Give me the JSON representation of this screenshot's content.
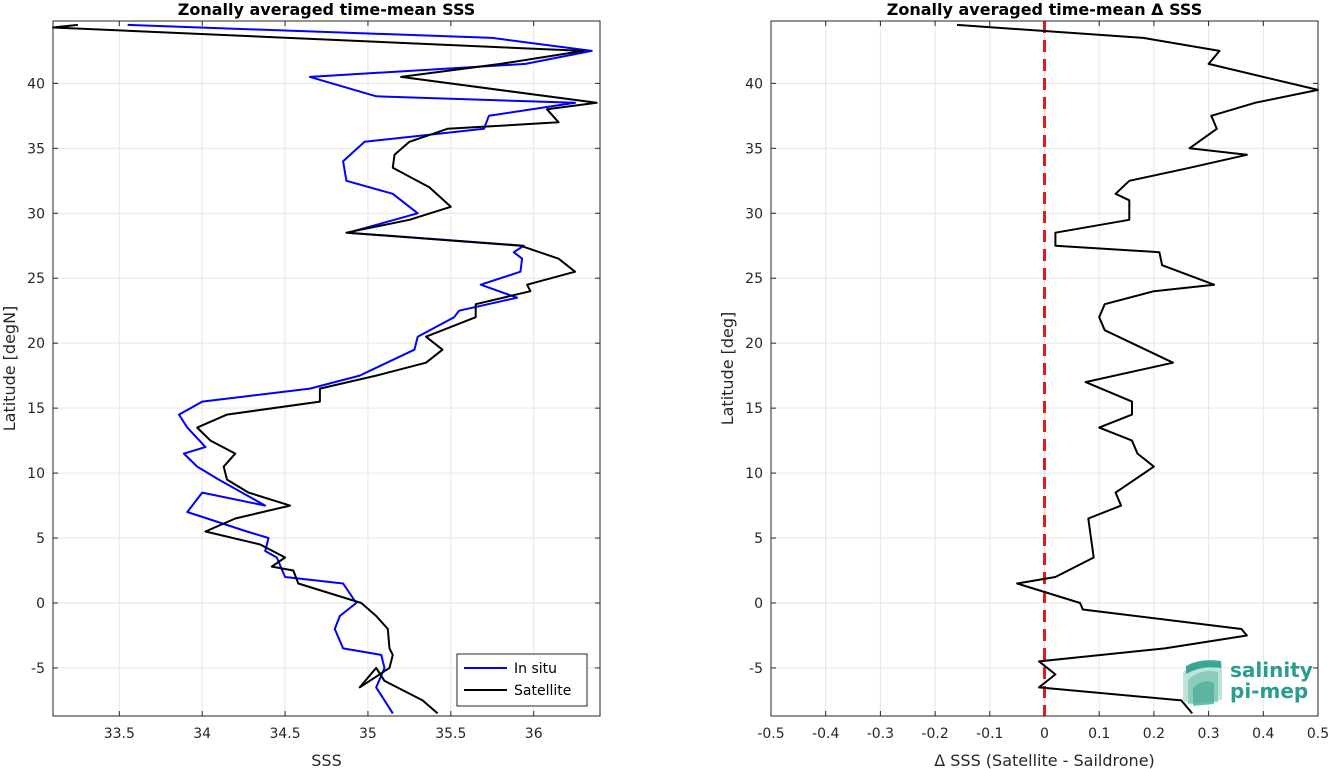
{
  "chart_data": [
    {
      "type": "line",
      "title": "Zonally averaged time-mean SSS",
      "xlabel": "SSS",
      "ylabel": "Latitude [degN]",
      "xlim": [
        33.1,
        36.4
      ],
      "ylim": [
        -8.7,
        44.8
      ],
      "xticks": [
        33.5,
        34,
        34.5,
        35,
        35.5,
        36
      ],
      "xtick_labels": [
        "33.5",
        "34",
        "34.5",
        "35",
        "35.5",
        "36"
      ],
      "yticks": [
        -5,
        0,
        5,
        10,
        15,
        20,
        25,
        30,
        35,
        40
      ],
      "ytick_labels": [
        "-5",
        "0",
        "5",
        "10",
        "15",
        "20",
        "25",
        "30",
        "35",
        "40"
      ],
      "grid": true,
      "legend_position": "bottom-right",
      "series": [
        {
          "name": "In situ",
          "color": "#0000ff",
          "x": [
            35.15,
            35.05,
            35.1,
            35.08,
            34.85,
            34.8,
            34.83,
            34.93,
            34.85,
            34.5,
            34.45,
            34.38,
            34.4,
            34.27,
            34.03,
            33.91,
            34.0,
            34.38,
            34.1,
            33.97,
            33.89,
            34.02,
            33.91,
            33.86,
            34.0,
            34.65,
            34.95,
            35.28,
            35.3,
            35.52,
            35.55,
            35.9,
            35.68,
            35.92,
            35.93,
            35.88,
            35.94,
            34.88,
            35.3,
            35.15,
            34.87,
            34.85,
            34.98,
            35.7,
            35.73,
            36.25,
            35.05,
            34.65,
            35.95,
            36.35,
            35.75,
            33.55
          ],
          "y": [
            -8.5,
            -6.5,
            -5,
            -4,
            -3.5,
            -2,
            -1,
            0,
            1.5,
            2,
            3.5,
            4,
            5,
            5.5,
            6.5,
            7,
            8.5,
            7.5,
            9.5,
            10.5,
            11.5,
            12,
            13.5,
            14.5,
            15.5,
            16.5,
            17.5,
            19.5,
            20.5,
            22,
            22.5,
            23.5,
            24.5,
            25.5,
            26.5,
            27,
            27.5,
            28.5,
            30,
            31.5,
            32.5,
            34,
            35.5,
            36.5,
            37.5,
            38.5,
            39,
            40.5,
            41.5,
            42.5,
            43.5,
            44.5
          ]
        },
        {
          "name": "Satellite",
          "color": "#000000",
          "x": [
            35.42,
            35.33,
            35.1,
            35.05,
            34.95,
            35.13,
            35.15,
            35.13,
            35.12,
            35.05,
            34.96,
            34.58,
            34.55,
            34.42,
            34.5,
            34.35,
            34.02,
            34.2,
            34.53,
            34.28,
            34.15,
            34.13,
            34.2,
            34.05,
            33.97,
            34.15,
            34.71,
            34.71,
            35.05,
            35.35,
            35.45,
            35.35,
            35.65,
            35.65,
            35.98,
            35.96,
            36.25,
            36.15,
            35.92,
            34.87,
            35.25,
            35.5,
            35.37,
            35.15,
            35.16,
            35.25,
            35.48,
            36.15,
            36.08,
            36.38,
            35.2,
            35.8,
            36.3,
            33.1,
            33.25
          ],
          "y": [
            -8.5,
            -7.5,
            -6,
            -5,
            -6.5,
            -5,
            -4,
            -3.5,
            -2,
            -1,
            0,
            1.5,
            2.5,
            2.8,
            3.5,
            4.5,
            5.5,
            6.5,
            7.5,
            8.5,
            9.5,
            10.5,
            11.5,
            12.5,
            13.5,
            14.5,
            15.5,
            16.5,
            17.5,
            18.5,
            19.5,
            20.5,
            22,
            23,
            24,
            24.5,
            25.5,
            26.5,
            27.5,
            28.5,
            29.5,
            30.5,
            32,
            33.5,
            34.5,
            35.5,
            36.5,
            37,
            38,
            38.5,
            40.5,
            41.5,
            42.5,
            44.3,
            44.5
          ]
        }
      ]
    },
    {
      "type": "line",
      "title": "Zonally averaged time-mean Δ SSS",
      "xlabel": "Δ SSS (Satellite - Saildrone)",
      "ylabel": "Latitude [deg]",
      "xlim": [
        -0.5,
        0.5
      ],
      "ylim": [
        -8.7,
        44.8
      ],
      "xticks": [
        -0.5,
        -0.4,
        -0.3,
        -0.2,
        -0.1,
        0,
        0.1,
        0.2,
        0.3,
        0.4,
        0.5
      ],
      "xtick_labels": [
        "-0.5",
        "-0.4",
        "-0.3",
        "-0.2",
        "-0.1",
        "0",
        "0.1",
        "0.2",
        "0.3",
        "0.4",
        "0.5"
      ],
      "yticks": [
        -5,
        0,
        5,
        10,
        15,
        20,
        25,
        30,
        35,
        40
      ],
      "ytick_labels": [
        "-5",
        "0",
        "5",
        "10",
        "15",
        "20",
        "25",
        "30",
        "35",
        "40"
      ],
      "grid": true,
      "reference_line": {
        "x": 0,
        "color": "#e31a1c",
        "style": "dashed"
      },
      "series": [
        {
          "color": "#000000",
          "x": [
            0.27,
            0.25,
            -0.01,
            0.02,
            -0.01,
            0.22,
            0.37,
            0.36,
            0.07,
            0.065,
            -0.05,
            0.02,
            0.09,
            0.085,
            0.08,
            0.14,
            0.13,
            0.2,
            0.17,
            0.16,
            0.1,
            0.16,
            0.16,
            0.075,
            0.235,
            0.185,
            0.11,
            0.1,
            0.11,
            0.2,
            0.31,
            0.215,
            0.21,
            0.02,
            0.02,
            0.155,
            0.155,
            0.13,
            0.155,
            0.265,
            0.37,
            0.265,
            0.315,
            0.305,
            0.385,
            0.5,
            0.3,
            0.31,
            0.32,
            0.18,
            -0.16
          ],
          "y": [
            -8.5,
            -7.5,
            -6.5,
            -5.5,
            -4.5,
            -3.5,
            -2.5,
            -2,
            -0.5,
            0,
            1.5,
            2,
            3.5,
            5,
            6.5,
            7.5,
            8.5,
            10.5,
            11.5,
            12.5,
            13.5,
            14.5,
            15.5,
            17,
            18.5,
            19.5,
            21,
            22,
            23,
            24,
            24.5,
            26,
            27,
            27.5,
            28.5,
            29.5,
            31,
            31.5,
            32.5,
            33.5,
            34.5,
            35,
            36.5,
            37.5,
            38.5,
            39.5,
            41.5,
            42,
            42.5,
            43.5,
            44.5
          ]
        }
      ]
    }
  ],
  "logo": {
    "line1": "salinity",
    "line2": "pi-mep",
    "color": "#2a9d8f"
  }
}
